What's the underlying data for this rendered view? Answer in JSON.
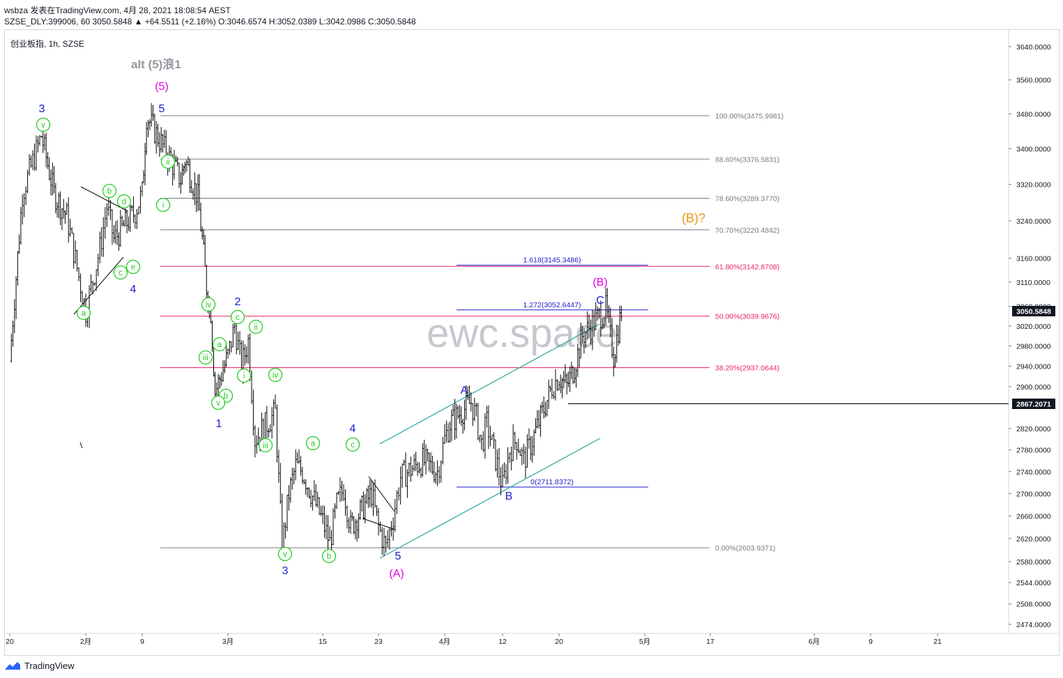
{
  "header": {
    "line1": "wsbza 发表在TradingView.com, 4月 28, 2021 18:08:54 AEST",
    "line2": "SZSE_DLY:399006, 60 3050.5848 ▲ +64.5511 (+2.16%) O:3046.6574 H:3052.0389 L:3042.0986 C:3050.5848"
  },
  "chart": {
    "symbol_label": "创业板指, 1h, SZSE",
    "watermark": "ewc.space",
    "alt_note": "alt (5)浪1",
    "price_tag_current": "3050.5848",
    "price_tag_level": "2867.2071",
    "colors": {
      "candle": "#000000",
      "fib_gray": "#787b86",
      "fib_pink": "#e91e63",
      "channel": "#26a69a",
      "blue": "#1a1acc",
      "green": "#22cc22",
      "magenta": "#e100e1",
      "orange": "#f0960f"
    }
  },
  "footer": {
    "brand": "TradingView"
  },
  "chart_data": {
    "type": "candlestick",
    "title": "创业板指, 1h, SZSE",
    "y_axis": {
      "ticks": [
        3640,
        3560,
        3480,
        3400,
        3320,
        3240,
        3160,
        3110,
        3060,
        3020,
        2980,
        2940,
        2900,
        2820,
        2780,
        2740,
        2700,
        2660,
        2620,
        2580,
        2544,
        2508,
        2474
      ],
      "tick_labels": [
        "3640.0000",
        "3560.0000",
        "3480.0000",
        "3400.0000",
        "3320.0000",
        "3240.0000",
        "3160.0000",
        "3110.0000",
        "3060.0000",
        "3020.0000",
        "2980.0000",
        "2940.0000",
        "2900.0000",
        "2820.0000",
        "2780.0000",
        "2740.0000",
        "2700.0000",
        "2660.0000",
        "2620.0000",
        "2580.0000",
        "2544.0000",
        "2508.0000",
        "2474.0000"
      ],
      "scale": "log"
    },
    "x_axis": {
      "tick_labels": [
        "20",
        "2月",
        "9",
        "3月",
        "15",
        "23",
        "4月",
        "12",
        "20",
        "5月",
        "17",
        "6月",
        "9",
        "21"
      ]
    },
    "price_path": [
      [
        "2021-01-20",
        2950
      ],
      [
        "2021-01-22",
        3300
      ],
      [
        "2021-01-25",
        3430
      ],
      [
        "2021-01-27",
        3300
      ],
      [
        "2021-01-29",
        3250
      ],
      [
        "2021-02-01",
        3050
      ],
      [
        "2021-02-03",
        3180
      ],
      [
        "2021-02-04",
        3270
      ],
      [
        "2021-02-05",
        3200
      ],
      [
        "2021-02-08",
        3260
      ],
      [
        "2021-02-09",
        3300
      ],
      [
        "2021-02-10",
        3476
      ],
      [
        "2021-02-18",
        3330
      ],
      [
        "2021-02-19",
        3376
      ],
      [
        "2021-02-22",
        3290
      ],
      [
        "2021-02-23",
        3200
      ],
      [
        "2021-02-24",
        3100
      ],
      [
        "2021-02-25",
        3050
      ],
      [
        "2021-02-26",
        2890
      ],
      [
        "2021-03-01",
        2960
      ],
      [
        "2021-03-02",
        3020
      ],
      [
        "2021-03-03",
        2940
      ],
      [
        "2021-03-04",
        2990
      ],
      [
        "2021-03-05",
        2800
      ],
      [
        "2021-03-08",
        2850
      ],
      [
        "2021-03-09",
        2604
      ],
      [
        "2021-03-10",
        2700
      ],
      [
        "2021-03-11",
        2750
      ],
      [
        "2021-03-12",
        2740
      ],
      [
        "2021-03-15",
        2650
      ],
      [
        "2021-03-16",
        2612
      ],
      [
        "2021-03-17",
        2680
      ],
      [
        "2021-03-18",
        2710
      ],
      [
        "2021-03-19",
        2640
      ],
      [
        "2021-03-22",
        2700
      ],
      [
        "2021-03-23",
        2640
      ],
      [
        "2021-03-24",
        2604
      ],
      [
        "2021-03-25",
        2660
      ],
      [
        "2021-03-26",
        2730
      ],
      [
        "2021-03-29",
        2760
      ],
      [
        "2021-03-31",
        2740
      ],
      [
        "2021-04-01",
        2800
      ],
      [
        "2021-04-02",
        2830
      ],
      [
        "2021-04-06",
        2870
      ],
      [
        "2021-04-07",
        2840
      ],
      [
        "2021-04-08",
        2790
      ],
      [
        "2021-04-09",
        2830
      ],
      [
        "2021-04-12",
        2712
      ],
      [
        "2021-04-13",
        2780
      ],
      [
        "2021-04-14",
        2800
      ],
      [
        "2021-04-15",
        2760
      ],
      [
        "2021-04-16",
        2790
      ],
      [
        "2021-04-19",
        2900
      ],
      [
        "2021-04-20",
        2920
      ],
      [
        "2021-04-21",
        2900
      ],
      [
        "2021-04-22",
        2940
      ],
      [
        "2021-04-23",
        3000
      ],
      [
        "2021-04-26",
        3055
      ],
      [
        "2021-04-27",
        2960
      ],
      [
        "2021-04-28",
        3050.5848
      ]
    ],
    "horizontal_levels": [
      {
        "label": "100.00%(3475.9981)",
        "value": 3475.9981,
        "color": "#787b86"
      },
      {
        "label": "88.60%(3376.5831)",
        "value": 3376.5831,
        "color": "#787b86"
      },
      {
        "label": "78.60%(3289.3770)",
        "value": 3289.377,
        "color": "#787b86"
      },
      {
        "label": "70.70%(3220.4842)",
        "value": 3220.4842,
        "color": "#787b86"
      },
      {
        "label": "61.80%(3142.8708)",
        "value": 3142.8708,
        "color": "#e91e63"
      },
      {
        "label": "50.00%(3039.9676)",
        "value": 3039.9676,
        "color": "#e91e63"
      },
      {
        "label": "38.20%(2937.0644)",
        "value": 2937.0644,
        "color": "#e91e63"
      },
      {
        "label": "0.00%(2603.9371)",
        "value": 2603.9371,
        "color": "#787b86"
      },
      {
        "label": "1.618(3145.3486)",
        "value": 3145.3486,
        "color": "#1a1acc"
      },
      {
        "label": "1.272(3052.6447)",
        "value": 3052.6447,
        "color": "#1a1acc"
      },
      {
        "label": "0(2711.8372)",
        "value": 2711.8372,
        "color": "#1a1acc"
      },
      {
        "label": "",
        "value": 2867.2071,
        "color": "#000000"
      }
    ],
    "wave_labels": [
      {
        "text": "3",
        "color": "#1a1acc"
      },
      {
        "text": "v",
        "color": "#22cc22"
      },
      {
        "text": "5",
        "color": "#1a1acc"
      },
      {
        "text": "(5)",
        "color": "#e100e1"
      },
      {
        "text": "ii",
        "color": "#22cc22"
      },
      {
        "text": "i",
        "color": "#22cc22"
      },
      {
        "text": "b",
        "color": "#22cc22"
      },
      {
        "text": "d",
        "color": "#22cc22"
      },
      {
        "text": "c",
        "color": "#22cc22"
      },
      {
        "text": "e",
        "color": "#22cc22"
      },
      {
        "text": "4",
        "color": "#1a1acc"
      },
      {
        "text": "a",
        "color": "#22cc22"
      },
      {
        "text": "iv",
        "color": "#22cc22"
      },
      {
        "text": "2",
        "color": "#1a1acc"
      },
      {
        "text": "c",
        "color": "#22cc22"
      },
      {
        "text": "ii",
        "color": "#22cc22"
      },
      {
        "text": "a",
        "color": "#22cc22"
      },
      {
        "text": "iii",
        "color": "#22cc22"
      },
      {
        "text": "i",
        "color": "#22cc22"
      },
      {
        "text": "iv",
        "color": "#22cc22"
      },
      {
        "text": "b",
        "color": "#22cc22"
      },
      {
        "text": "v",
        "color": "#22cc22"
      },
      {
        "text": "1",
        "color": "#1a1acc"
      },
      {
        "text": "iii",
        "color": "#22cc22"
      },
      {
        "text": "a",
        "color": "#22cc22"
      },
      {
        "text": "4",
        "color": "#1a1acc"
      },
      {
        "text": "c",
        "color": "#22cc22"
      },
      {
        "text": "v",
        "color": "#22cc22"
      },
      {
        "text": "3",
        "color": "#1a1acc"
      },
      {
        "text": "b",
        "color": "#22cc22"
      },
      {
        "text": "5",
        "color": "#1a1acc"
      },
      {
        "text": "(A)",
        "color": "#e100e1"
      },
      {
        "text": "A",
        "color": "#1a1acc"
      },
      {
        "text": "B",
        "color": "#1a1acc"
      },
      {
        "text": "(B)",
        "color": "#e100e1"
      },
      {
        "text": "C",
        "color": "#1a1acc"
      },
      {
        "text": "(B)?",
        "color": "#f0960f"
      }
    ]
  }
}
